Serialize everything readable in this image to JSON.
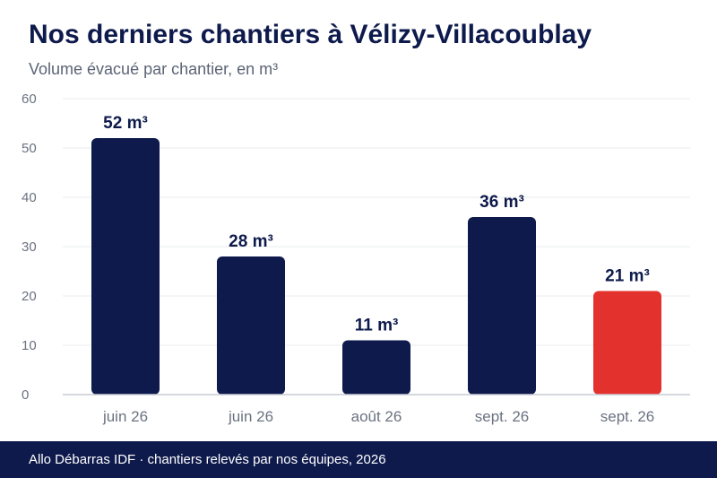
{
  "title": "Nos derniers chantiers à Vélizy-Villacoublay",
  "subtitle": "Volume évacué par chantier, en m³",
  "footer": "Allo Débarras IDF · chantiers relevés par nos équipes, 2026",
  "colors": {
    "bar": "#0e1a4c",
    "highlight": "#e3312d",
    "grid": "#e9ebef",
    "axis": "#c9ccd6",
    "tick": "#6b7280",
    "label": "#0e1a4c"
  },
  "chart_data": {
    "type": "bar",
    "title": "Nos derniers chantiers à Vélizy-Villacoublay",
    "subtitle": "Volume évacué par chantier, en m³",
    "xlabel": "",
    "ylabel": "",
    "categories": [
      "juin 26",
      "juin 26",
      "août 26",
      "sept. 26",
      "sept. 26"
    ],
    "values": [
      52,
      28,
      11,
      36,
      21
    ],
    "data_labels": [
      "52 m³",
      "28 m³",
      "11 m³",
      "36 m³",
      "21 m³"
    ],
    "highlight_index": 4,
    "ylim": [
      0,
      60
    ],
    "yticks": [
      0,
      10,
      20,
      30,
      40,
      50,
      60
    ],
    "grid": true,
    "legend": "none"
  }
}
